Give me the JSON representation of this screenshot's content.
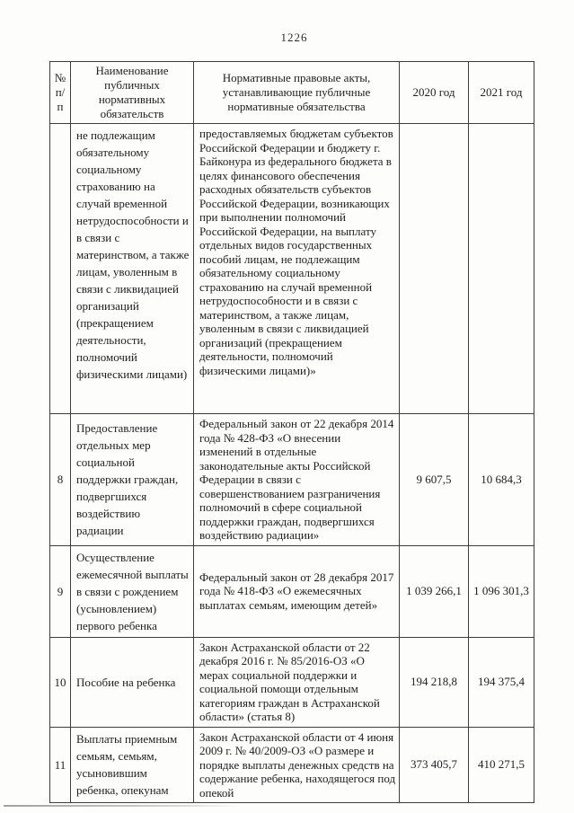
{
  "page": {
    "number": "1226"
  },
  "table": {
    "headers": {
      "col_num": "№ п/п",
      "col_name": "Наименование публичных нормативных обязательств",
      "col_acts": "Нормативные правовые акты, устанавливающие публичные нормативные обязательства",
      "col_2020": "2020 год",
      "col_2021": "2021 год"
    },
    "rows": [
      {
        "num": "",
        "name": "не подлежащим обязательному социальному страхованию на случай временной нетрудоспособности и в связи с материнством, а также лицам, уволенным в связи с ликвидацией организаций (прекращением деятельности, полномочий физическими лицами)",
        "acts": "предоставляемых бюджетам субъектов Российской Федерации и бюджету г. Байконура из федерального бюджета в целях финансового обеспечения расходных обязательств субъектов Российской Федерации, возникающих при выполнении полномочий Российской Федерации, на выплату отдельных видов государственных пособий лицам, не подлежащим обязательному социальному страхованию на случай временной нетрудоспособности и в связи с материнством, а также лицам, уволенным в связи с ликвидацией организаций (прекращением деятельности, полномочий физическими лицами)»",
        "y2020": "",
        "y2021": ""
      },
      {
        "num": "8",
        "name": "Предоставление отдельных мер социальной поддержки граждан, подвергшихся воздействию радиации",
        "acts": "Федеральный закон от 22 декабря 2014 года № 428-ФЗ «О внесении изменений в отдельные законодательные акты Российской Федерации в связи с совершенствованием разграничения полномочий в сфере социальной поддержки граждан, подвергшихся воздействию радиации»",
        "y2020": "9 607,5",
        "y2021": "10 684,3"
      },
      {
        "num": "9",
        "name": "Осуществление ежемесячной выплаты в связи с рождением (усыновлением) первого ребенка",
        "acts": "Федеральный закон от 28 декабря 2017 года № 418-ФЗ «О ежемесячных выплатах семьям, имеющим детей»",
        "y2020": "1 039 266,1",
        "y2021": "1 096 301,3"
      },
      {
        "num": "10",
        "name": "Пособие на ребенка",
        "acts": "Закон Астраханской области от 22 декабря 2016 г. № 85/2016-ОЗ «О мерах социальной поддержки и социальной помощи отдельным категориям граждан в Астраханской области» (статья 8)",
        "y2020": "194 218,8",
        "y2021": "194 375,4"
      },
      {
        "num": "11",
        "name": "Выплаты приемным семьям, семьям, усыновившим ребенка, опекунам",
        "acts": "Закон Астраханской области от 4 июня 2009 г. № 40/2009-ОЗ «О размере и порядке выплаты денежных средств на содержание ребенка, находящегося под опекой",
        "y2020": "373 405,7",
        "y2021": "410 271,5"
      }
    ]
  }
}
